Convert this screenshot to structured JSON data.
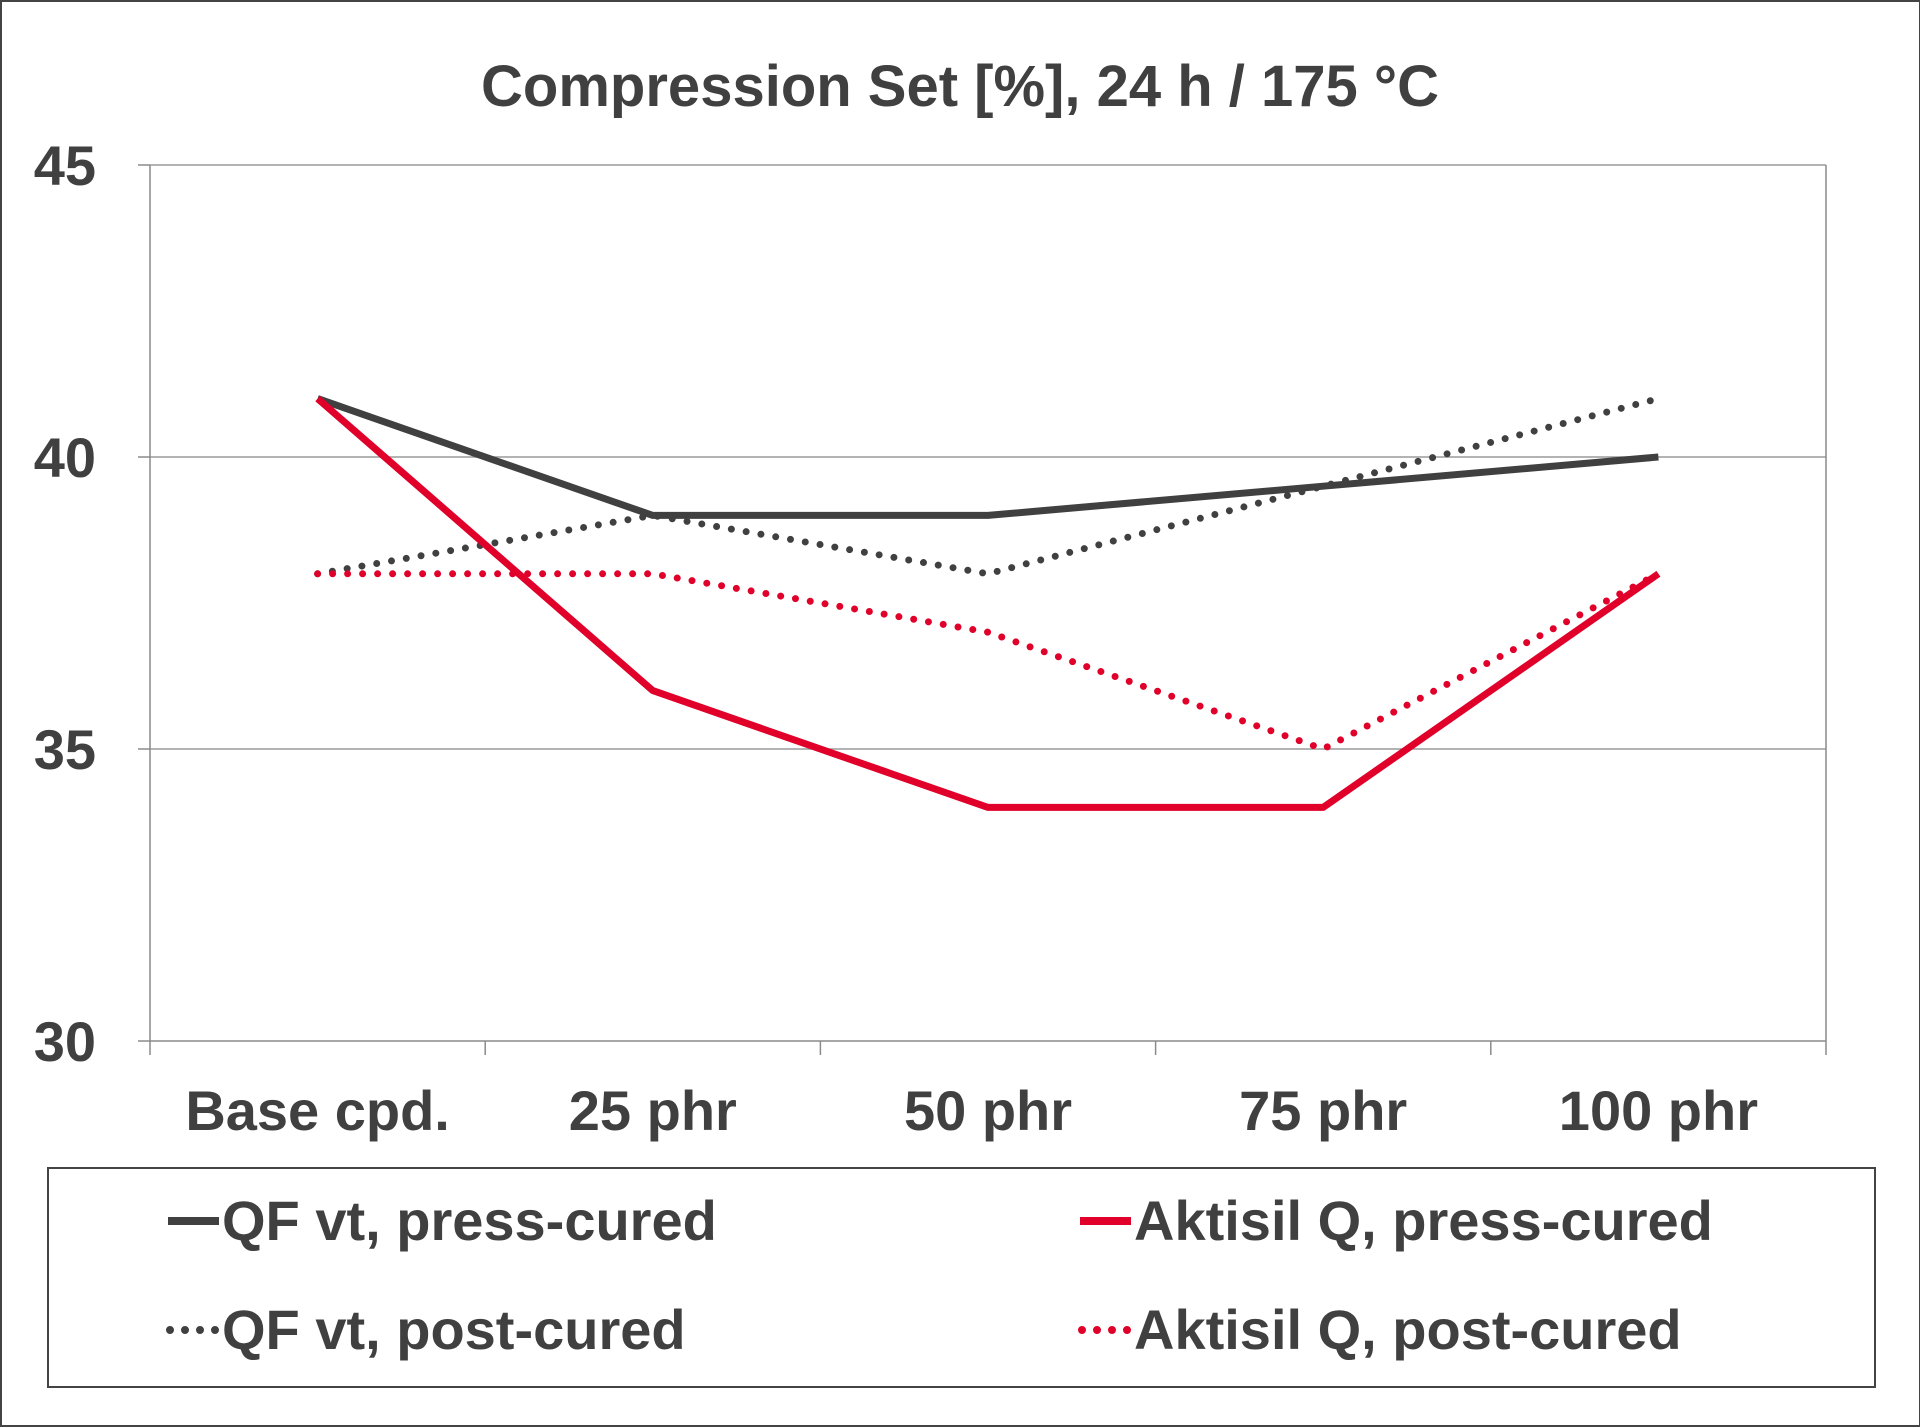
{
  "chart_data": {
    "type": "line",
    "title": "Compression Set [%], 24 h / 175 °C",
    "xlabel": "",
    "ylabel": "",
    "categories": [
      "Base cpd.",
      "25 phr",
      "50 phr",
      "75 phr",
      "100 phr"
    ],
    "ylim": [
      30,
      45
    ],
    "yticks": [
      30,
      35,
      40,
      45
    ],
    "grid": true,
    "legend_position": "bottom",
    "series": [
      {
        "name": "QF vt, press-cured",
        "values": [
          41,
          39,
          39,
          39.5,
          40
        ],
        "color": "#404040",
        "style": "solid"
      },
      {
        "name": "QF vt, post-cured",
        "values": [
          38,
          39,
          38,
          39.5,
          41
        ],
        "color": "#404040",
        "style": "dotted"
      },
      {
        "name": "Aktisil Q, press-cured",
        "values": [
          41,
          36,
          34,
          34,
          38
        ],
        "color": "#e0002a",
        "style": "solid"
      },
      {
        "name": "Aktisil Q, post-cured",
        "values": [
          38,
          38,
          37,
          35,
          38
        ],
        "color": "#e0002a",
        "style": "dotted"
      }
    ]
  }
}
